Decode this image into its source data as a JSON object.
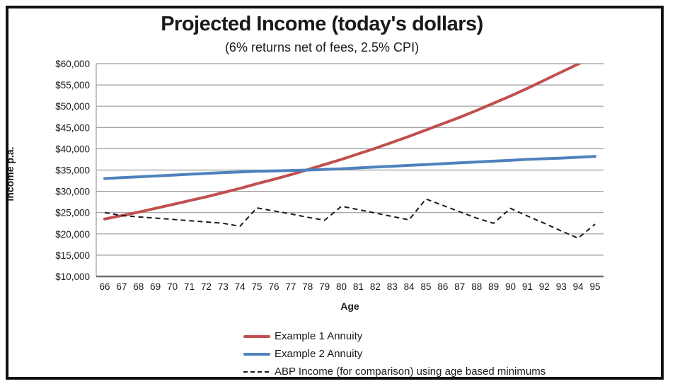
{
  "chart": {
    "title": "Projected Income (today's dollars)",
    "subtitle": "(6% returns net of fees, 2.5% CPI)",
    "x_axis_title": "Age",
    "y_axis_title": "Income p.a."
  },
  "chart_data": {
    "type": "line",
    "title": "Projected Income (today's dollars)",
    "subtitle": "(6% returns net of fees, 2.5% CPI)",
    "xlabel": "Age",
    "ylabel": "Income p.a.",
    "grid": "horizontal",
    "legend_position": "bottom",
    "x": [
      66,
      67,
      68,
      69,
      70,
      71,
      72,
      73,
      74,
      75,
      76,
      77,
      78,
      79,
      80,
      81,
      82,
      83,
      84,
      85,
      86,
      87,
      88,
      89,
      90,
      91,
      92,
      93,
      94,
      95
    ],
    "ylim": [
      10000,
      60000
    ],
    "yticks": [
      {
        "value": 10000,
        "label": "$10,000"
      },
      {
        "value": 15000,
        "label": "$15,000"
      },
      {
        "value": 20000,
        "label": "$20,000"
      },
      {
        "value": 25000,
        "label": "$25,000"
      },
      {
        "value": 30000,
        "label": "$30,000"
      },
      {
        "value": 35000,
        "label": "$35,000"
      },
      {
        "value": 40000,
        "label": "$40,000"
      },
      {
        "value": 45000,
        "label": "$45,000"
      },
      {
        "value": 50000,
        "label": "$50,000"
      },
      {
        "value": 55000,
        "label": "$55,000"
      },
      {
        "value": 60000,
        "label": "$60,000"
      }
    ],
    "series": [
      {
        "name": "Example 1 Annuity",
        "color": "#C0504D",
        "style": "solid",
        "width": 4,
        "values": [
          23500,
          24300,
          25100,
          26000,
          26900,
          27800,
          28700,
          29700,
          30700,
          31800,
          32800,
          33900,
          35100,
          36300,
          37500,
          38800,
          40100,
          41500,
          42900,
          44400,
          45900,
          47400,
          49000,
          50700,
          52400,
          54200,
          56100,
          58000,
          59900,
          62000
        ]
      },
      {
        "name": "Example 2 Annuity",
        "color": "#4F81BD",
        "style": "solid",
        "width": 4,
        "values": [
          33000,
          33200,
          33400,
          33600,
          33800,
          34000,
          34200,
          34400,
          34550,
          34700,
          34800,
          34900,
          35000,
          35150,
          35300,
          35500,
          35700,
          35900,
          36100,
          36300,
          36500,
          36700,
          36900,
          37100,
          37300,
          37500,
          37650,
          37800,
          38000,
          38200
        ]
      },
      {
        "name": "ABP Income (for comparison) using age based minimums",
        "color": "#1a1a1a",
        "style": "dashed",
        "width": 2,
        "values": [
          25000,
          24300,
          24000,
          23700,
          23400,
          23100,
          22800,
          22500,
          21800,
          26100,
          25400,
          24700,
          23900,
          23200,
          26500,
          25700,
          24900,
          24100,
          23300,
          28200,
          26700,
          25200,
          23700,
          22500,
          26000,
          24200,
          22500,
          20700,
          19000,
          22300
        ]
      }
    ]
  }
}
